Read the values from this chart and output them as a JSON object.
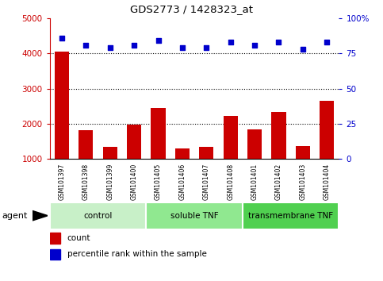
{
  "title": "GDS2773 / 1428323_at",
  "samples": [
    "GSM101397",
    "GSM101398",
    "GSM101399",
    "GSM101400",
    "GSM101405",
    "GSM101406",
    "GSM101407",
    "GSM101408",
    "GSM101401",
    "GSM101402",
    "GSM101403",
    "GSM101404"
  ],
  "counts": [
    4050,
    1820,
    1330,
    1980,
    2450,
    1290,
    1350,
    2230,
    1830,
    2340,
    1370,
    2650
  ],
  "percentile_ranks_pct": [
    86,
    81,
    79,
    81,
    84,
    79,
    79,
    83,
    81,
    83,
    78,
    83
  ],
  "groups": [
    {
      "label": "control",
      "start": 0,
      "end": 3,
      "color": "#c8f0c8"
    },
    {
      "label": "soluble TNF",
      "start": 4,
      "end": 7,
      "color": "#90e890"
    },
    {
      "label": "transmembrane TNF",
      "start": 8,
      "end": 11,
      "color": "#50d050"
    }
  ],
  "bar_color": "#cc0000",
  "dot_color": "#0000cc",
  "ylim_left": [
    1000,
    5000
  ],
  "ylim_right": [
    0,
    100
  ],
  "yticks_left": [
    1000,
    2000,
    3000,
    4000,
    5000
  ],
  "yticks_right": [
    0,
    25,
    50,
    75,
    100
  ],
  "grid_lines": [
    2000,
    3000,
    4000
  ],
  "background_color": "#ffffff",
  "tick_area_color": "#c0c0c0",
  "agent_label": "agent",
  "legend_count_label": "count",
  "legend_percentile_label": "percentile rank within the sample"
}
